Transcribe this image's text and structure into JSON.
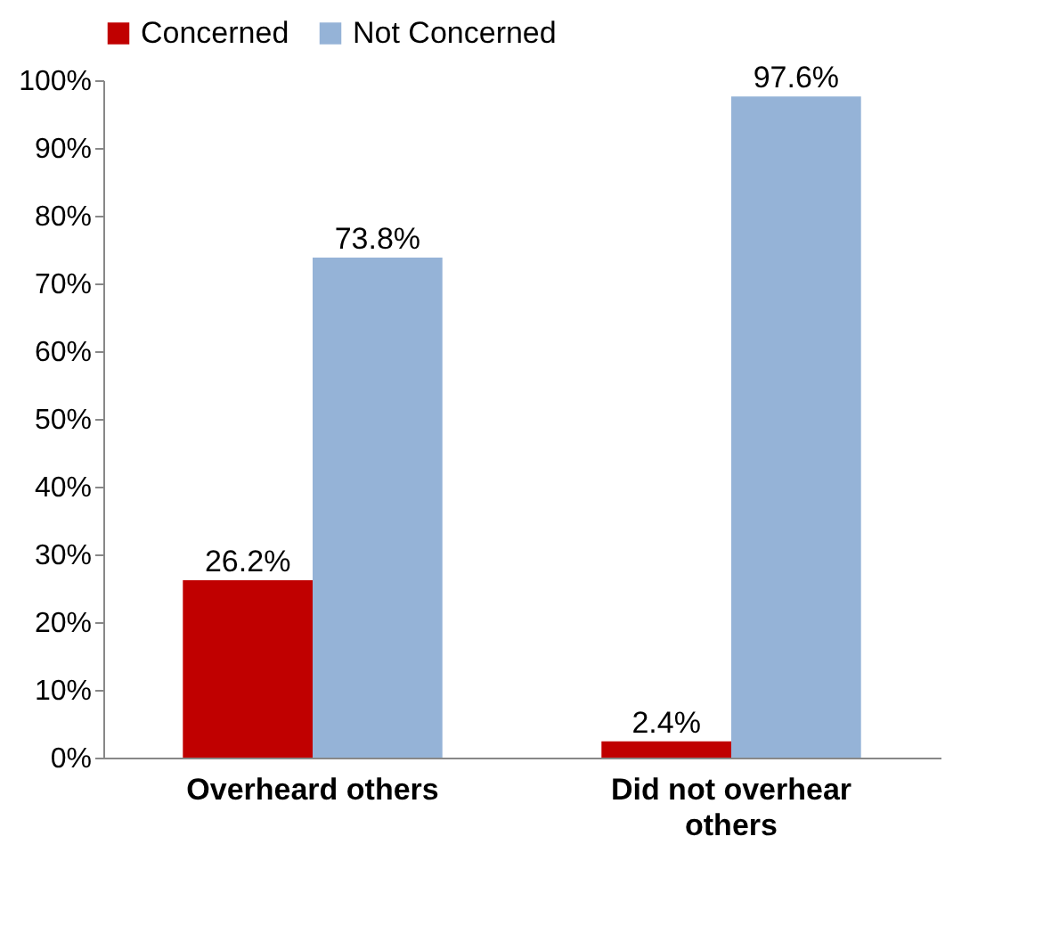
{
  "chart_data": {
    "type": "bar",
    "categories": [
      "Overheard others",
      "Did not overhear others"
    ],
    "series": [
      {
        "name": "Concerned",
        "color": "#c00000",
        "values": [
          26.2,
          2.4
        ],
        "value_labels": [
          "26.2%",
          "2.4%"
        ]
      },
      {
        "name": "Not Concerned",
        "color": "#95b3d7",
        "values": [
          73.8,
          97.6
        ],
        "value_labels": [
          "73.8%",
          "97.6%"
        ]
      }
    ],
    "ylim": [
      0,
      100
    ],
    "yticks": [
      {
        "value": 0,
        "label": "0%"
      },
      {
        "value": 10,
        "label": "10%"
      },
      {
        "value": 20,
        "label": "20%"
      },
      {
        "value": 30,
        "label": "30%"
      },
      {
        "value": 40,
        "label": "40%"
      },
      {
        "value": 50,
        "label": "50%"
      },
      {
        "value": 60,
        "label": "60%"
      },
      {
        "value": 70,
        "label": "70%"
      },
      {
        "value": 80,
        "label": "80%"
      },
      {
        "value": 90,
        "label": "90%"
      },
      {
        "value": 100,
        "label": "100%"
      }
    ],
    "grid": false,
    "legend": "top"
  }
}
